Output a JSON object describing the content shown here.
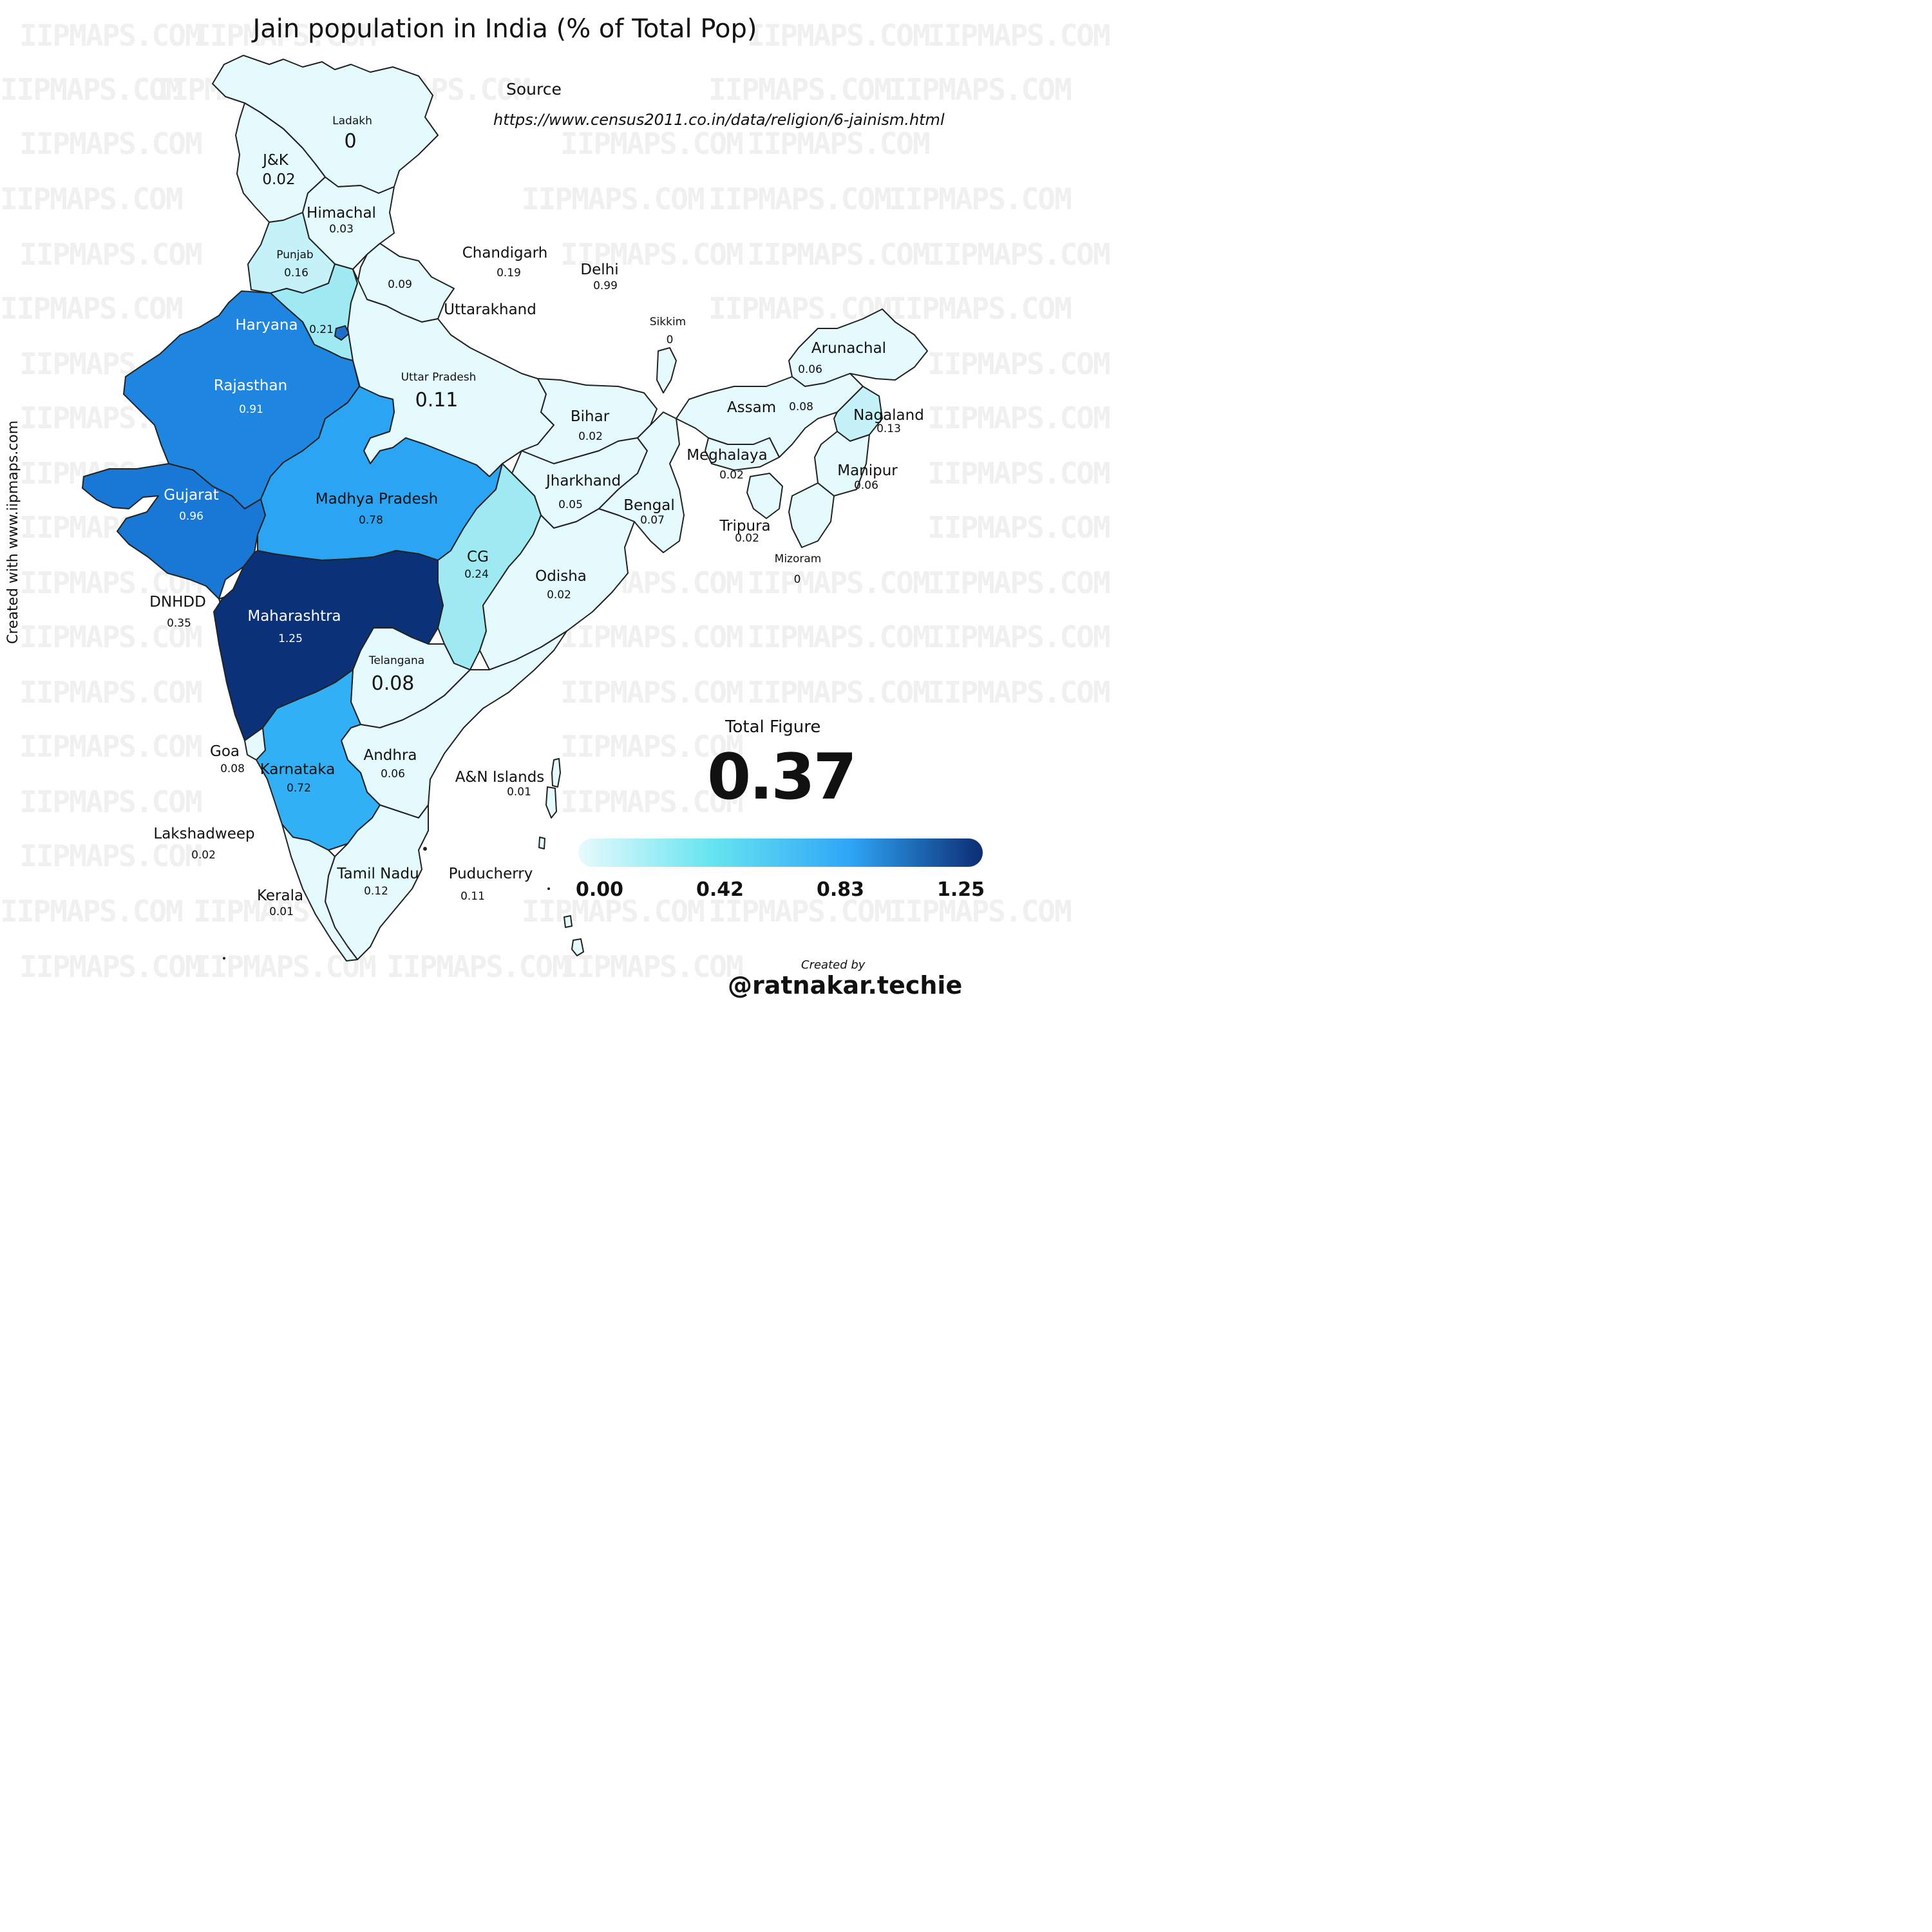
{
  "title": "Jain population in India (% of Total Pop)",
  "source_label": "Source",
  "source_url": "https://www.census2011.co.in/data/religion/6-jainism.html",
  "watermark": "IIPMAPS.COM",
  "credit_vertical": "Created with www.iipmaps.com",
  "total": {
    "label": "Total Figure",
    "value": "0.37"
  },
  "legend": {
    "ticks": [
      "0.00",
      "0.42",
      "0.83",
      "1.25"
    ],
    "colors": [
      "#e8fafc",
      "#66e4f0",
      "#2fa6f7",
      "#0c2d72"
    ]
  },
  "footer": {
    "created_by": "Created by",
    "handle": "@ratnakar.techie"
  },
  "colors": {
    "lightest": "#e5fafc",
    "light": "#c4f2f8",
    "cyan": "#9ee9f2",
    "mid_blue": "#2ba4f4",
    "mid_blue2": "#31b0f6",
    "blue": "#1e86e0",
    "gujarat": "#1978d6",
    "dark": "#0b3278",
    "border": "#222222"
  },
  "regions": {
    "ladakh": {
      "name": "Ladakh",
      "value": "0"
    },
    "jk": {
      "name": "J&K",
      "value": "0.02"
    },
    "himachal": {
      "name": "Himachal",
      "value": "0.03"
    },
    "punjab": {
      "name": "Punjab",
      "value": "0.16"
    },
    "chandigarh": {
      "name": "Chandigarh",
      "value": "0.19"
    },
    "uttarakhand": {
      "name": "Uttarakhand",
      "value": "0.09"
    },
    "delhi": {
      "name": "Delhi",
      "value": "0.99"
    },
    "haryana": {
      "name": "Haryana",
      "value": "0.21"
    },
    "sikkim": {
      "name": "Sikkim",
      "value": "0"
    },
    "arunachal": {
      "name": "Arunachal",
      "value": "0.06"
    },
    "up": {
      "name": "Uttar Pradesh",
      "value": "0.11"
    },
    "rajasthan": {
      "name": "Rajasthan",
      "value": "0.91"
    },
    "assam": {
      "name": "Assam",
      "value": "0.08"
    },
    "nagaland": {
      "name": "Nagaland",
      "value": "0.13"
    },
    "bihar": {
      "name": "Bihar",
      "value": "0.02"
    },
    "meghalaya": {
      "name": "Meghalaya",
      "value": "0.02"
    },
    "manipur": {
      "name": "Manipur",
      "value": "0.06"
    },
    "gujarat": {
      "name": "Gujarat",
      "value": "0.96"
    },
    "mp": {
      "name": "Madhya Pradesh",
      "value": "0.78"
    },
    "jharkhand": {
      "name": "Jharkhand",
      "value": "0.05"
    },
    "bengal": {
      "name": "Bengal",
      "value": "0.07"
    },
    "tripura": {
      "name": "Tripura",
      "value": "0.02"
    },
    "mizoram": {
      "name": "Mizoram",
      "value": "0"
    },
    "cg": {
      "name": "CG",
      "value": "0.24"
    },
    "odisha": {
      "name": "Odisha",
      "value": "0.02"
    },
    "dnhdd": {
      "name": "DNHDD",
      "value": "0.35"
    },
    "maharashtra": {
      "name": "Maharashtra",
      "value": "1.25"
    },
    "telangana": {
      "name": "Telangana",
      "value": "0.08"
    },
    "goa": {
      "name": "Goa",
      "value": "0.08"
    },
    "karnataka": {
      "name": "Karnataka",
      "value": "0.72"
    },
    "andhra": {
      "name": "Andhra",
      "value": "0.06"
    },
    "an_islands": {
      "name": "A&N Islands",
      "value": "0.01"
    },
    "lakshadweep": {
      "name": "Lakshadweep",
      "value": "0.02"
    },
    "tamilnadu": {
      "name": "Tamil Nadu",
      "value": "0.12"
    },
    "puducherry": {
      "name": "Puducherry",
      "value": "0.11"
    },
    "kerala": {
      "name": "Kerala",
      "value": "0.01"
    }
  }
}
